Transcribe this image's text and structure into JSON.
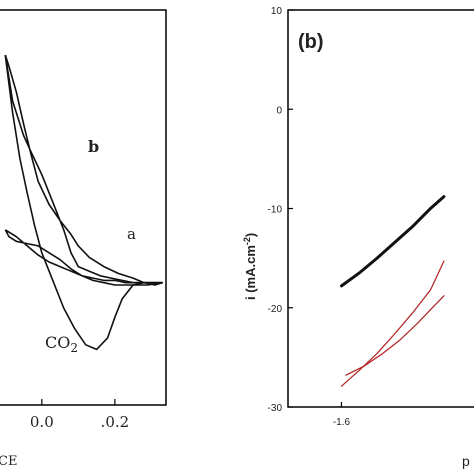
{
  "chart_data": [
    {
      "type": "line",
      "panel_label": "",
      "xlabel": "CE",
      "ylabel": "",
      "xlim": [
        0.12,
        -0.34
      ],
      "x_ticks": [
        {
          "value": -0.2,
          "label": ".0.2"
        },
        {
          "value": 0.0,
          "label": "0.0"
        }
      ],
      "series": [
        {
          "name": "b",
          "x": [
            0.1,
            0.08,
            0.05,
            0.03,
            0.0,
            -0.03,
            -0.06,
            -0.08,
            -0.1,
            -0.13,
            -0.16,
            -0.19,
            -0.22,
            -0.25,
            -0.28,
            -0.31,
            -0.33,
            -0.31,
            -0.28,
            -0.25,
            -0.21,
            -0.17,
            -0.13,
            -0.1,
            -0.08,
            -0.05,
            -0.02,
            0.01,
            0.03,
            0.05,
            0.07,
            0.09,
            0.1
          ],
          "y": [
            0.0,
            -0.2,
            -0.35,
            -0.42,
            -0.52,
            -0.64,
            -0.76,
            -0.86,
            -0.92,
            -0.94,
            -0.96,
            -0.97,
            -0.98,
            -0.99,
            -0.99,
            -0.99,
            -0.99,
            -1.0,
            -0.99,
            -0.97,
            -0.95,
            -0.92,
            -0.88,
            -0.83,
            -0.78,
            -0.72,
            -0.65,
            -0.55,
            -0.43,
            -0.3,
            -0.16,
            -0.05,
            0.0
          ]
        },
        {
          "name": "CO2",
          "x": [
            -0.33,
            -0.31,
            -0.28,
            -0.25,
            -0.22,
            -0.2,
            -0.18,
            -0.15,
            -0.12,
            -0.09,
            -0.06,
            -0.03,
            0.0,
            0.02,
            0.04,
            0.06,
            0.08,
            0.1
          ],
          "y": [
            -0.99,
            -0.99,
            -0.99,
            -1.0,
            -1.06,
            -1.14,
            -1.23,
            -1.28,
            -1.26,
            -1.19,
            -1.1,
            -0.98,
            -0.86,
            -0.74,
            -0.6,
            -0.45,
            -0.25,
            0.0
          ]
        },
        {
          "name": "a",
          "x": [
            0.1,
            0.07,
            0.04,
            0.01,
            -0.02,
            -0.05,
            -0.08,
            -0.11,
            -0.14,
            -0.17,
            -0.2,
            -0.23,
            -0.26,
            -0.29,
            -0.33,
            -0.29,
            -0.26,
            -0.23,
            -0.2,
            -0.17,
            -0.14,
            -0.11,
            -0.08,
            -0.05,
            -0.02,
            0.01,
            0.04,
            0.07,
            0.09,
            0.1
          ],
          "y": [
            -0.76,
            -0.79,
            -0.83,
            -0.87,
            -0.9,
            -0.92,
            -0.94,
            -0.96,
            -0.97,
            -0.98,
            -0.98,
            -0.99,
            -0.99,
            -0.99,
            -0.99,
            -1.0,
            -1.0,
            -1.0,
            -1.0,
            -0.99,
            -0.98,
            -0.96,
            -0.93,
            -0.89,
            -0.86,
            -0.83,
            -0.82,
            -0.81,
            -0.79,
            -0.76
          ]
        }
      ],
      "annotations": [
        "b",
        "a",
        "CO",
        "2"
      ],
      "colors": {
        "curves": "#111111",
        "axis": "#000000"
      }
    },
    {
      "type": "line",
      "panel_label": "(b)",
      "xlabel": "p",
      "ylabel": "i (mA.cm",
      "ylabel_sup": "-2",
      "ylabel_close": ")",
      "xlim": [
        -1.72,
        -1.28
      ],
      "ylim": [
        -30,
        10
      ],
      "y_ticks": [
        {
          "value": 10,
          "label": "10"
        },
        {
          "value": 0,
          "label": "0"
        },
        {
          "value": -10,
          "label": "-10"
        },
        {
          "value": -20,
          "label": "-20"
        },
        {
          "value": -30,
          "label": "-30"
        }
      ],
      "x_ticks": [
        {
          "value": -1.6,
          "label": "-1.6"
        }
      ],
      "series": [
        {
          "name": "",
          "color": "#111111",
          "width": 3,
          "x": [
            -1.6,
            -1.56,
            -1.52,
            -1.48,
            -1.44,
            -1.4,
            -1.37
          ],
          "y": [
            -17.8,
            -16.5,
            -15.0,
            -13.4,
            -11.8,
            -10.0,
            -8.8
          ]
        },
        {
          "name": "",
          "color": "#b22222",
          "width": 1.2,
          "x": [
            -1.6,
            -1.56,
            -1.52,
            -1.48,
            -1.44,
            -1.4,
            -1.37
          ],
          "y": [
            -27.9,
            -26.3,
            -24.6,
            -22.6,
            -20.5,
            -18.2,
            -15.3
          ]
        },
        {
          "name": "",
          "color": "#b22222",
          "width": 1.2,
          "x": [
            -1.59,
            -1.55,
            -1.51,
            -1.47,
            -1.43,
            -1.4,
            -1.37
          ],
          "y": [
            -26.8,
            -25.9,
            -24.7,
            -23.3,
            -21.6,
            -20.2,
            -18.8
          ]
        }
      ],
      "colors": {
        "black_series": "#111111",
        "red_series": "#b22222"
      }
    }
  ]
}
